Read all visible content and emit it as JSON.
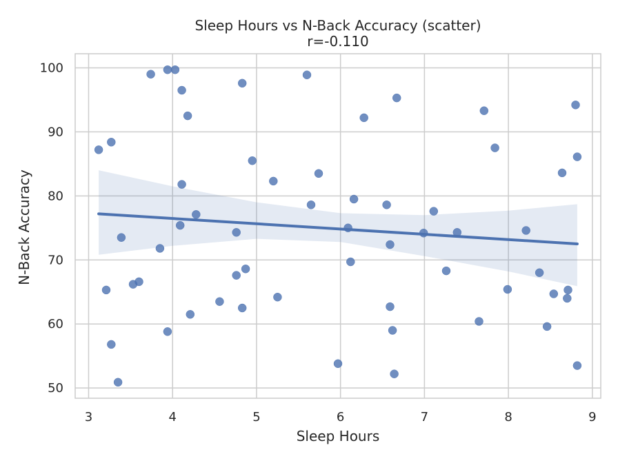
{
  "chart_data": {
    "type": "scatter",
    "title": "Sleep Hours vs N-Back Accuracy (scatter)",
    "subtitle": "r=-0.110",
    "xlabel": "Sleep Hours",
    "ylabel": "N-Back Accuracy",
    "xlim": [
      2.84,
      9.1
    ],
    "ylim": [
      48.4,
      102.2
    ],
    "xticks": [
      "3",
      "4",
      "5",
      "6",
      "7",
      "8",
      "9"
    ],
    "yticks": [
      "50",
      "60",
      "70",
      "80",
      "90",
      "100"
    ],
    "grid": true,
    "colors": {
      "point": "#4c72b0",
      "line": "#4c72b0",
      "band": "#4c72b0",
      "grid": "#cccccc",
      "frame": "#cccccc"
    },
    "points": [
      {
        "x": 3.12,
        "y": 87.2
      },
      {
        "x": 3.27,
        "y": 88.4
      },
      {
        "x": 3.21,
        "y": 65.3
      },
      {
        "x": 3.27,
        "y": 56.8
      },
      {
        "x": 3.35,
        "y": 50.9
      },
      {
        "x": 3.39,
        "y": 73.5
      },
      {
        "x": 3.53,
        "y": 66.2
      },
      {
        "x": 3.6,
        "y": 66.6
      },
      {
        "x": 3.74,
        "y": 99.0
      },
      {
        "x": 3.85,
        "y": 71.8
      },
      {
        "x": 3.94,
        "y": 99.7
      },
      {
        "x": 4.03,
        "y": 99.7
      },
      {
        "x": 3.94,
        "y": 58.8
      },
      {
        "x": 4.11,
        "y": 96.5
      },
      {
        "x": 4.18,
        "y": 92.5
      },
      {
        "x": 4.11,
        "y": 81.8
      },
      {
        "x": 4.09,
        "y": 75.4
      },
      {
        "x": 4.28,
        "y": 77.1
      },
      {
        "x": 4.21,
        "y": 61.5
      },
      {
        "x": 4.56,
        "y": 63.5
      },
      {
        "x": 4.83,
        "y": 97.6
      },
      {
        "x": 4.76,
        "y": 74.3
      },
      {
        "x": 4.76,
        "y": 67.6
      },
      {
        "x": 4.87,
        "y": 68.6
      },
      {
        "x": 4.83,
        "y": 62.5
      },
      {
        "x": 4.95,
        "y": 85.5
      },
      {
        "x": 5.2,
        "y": 82.3
      },
      {
        "x": 5.25,
        "y": 64.2
      },
      {
        "x": 5.6,
        "y": 98.9
      },
      {
        "x": 5.74,
        "y": 83.5
      },
      {
        "x": 5.65,
        "y": 78.6
      },
      {
        "x": 5.97,
        "y": 53.8
      },
      {
        "x": 6.09,
        "y": 75.0
      },
      {
        "x": 6.16,
        "y": 79.5
      },
      {
        "x": 6.12,
        "y": 69.7
      },
      {
        "x": 6.28,
        "y": 92.2
      },
      {
        "x": 6.55,
        "y": 78.6
      },
      {
        "x": 6.59,
        "y": 72.4
      },
      {
        "x": 6.59,
        "y": 62.7
      },
      {
        "x": 6.62,
        "y": 59.0
      },
      {
        "x": 6.64,
        "y": 52.2
      },
      {
        "x": 6.67,
        "y": 95.3
      },
      {
        "x": 6.99,
        "y": 74.2
      },
      {
        "x": 7.11,
        "y": 77.6
      },
      {
        "x": 7.26,
        "y": 68.3
      },
      {
        "x": 7.39,
        "y": 74.3
      },
      {
        "x": 7.65,
        "y": 60.4
      },
      {
        "x": 7.71,
        "y": 93.3
      },
      {
        "x": 7.84,
        "y": 87.5
      },
      {
        "x": 7.99,
        "y": 65.4
      },
      {
        "x": 8.21,
        "y": 74.6
      },
      {
        "x": 8.37,
        "y": 68.0
      },
      {
        "x": 8.46,
        "y": 59.6
      },
      {
        "x": 8.54,
        "y": 64.7
      },
      {
        "x": 8.64,
        "y": 83.6
      },
      {
        "x": 8.7,
        "y": 64.0
      },
      {
        "x": 8.71,
        "y": 65.3
      },
      {
        "x": 8.8,
        "y": 94.2
      },
      {
        "x": 8.82,
        "y": 86.1
      },
      {
        "x": 8.82,
        "y": 53.5
      }
    ],
    "regression_line": {
      "x": [
        3.12,
        8.82
      ],
      "y": [
        77.2,
        72.5
      ]
    },
    "confidence_band": {
      "x": [
        3.12,
        4.0,
        5.0,
        6.0,
        7.0,
        8.0,
        8.82
      ],
      "upper": [
        84.0,
        81.5,
        79.0,
        77.3,
        77.0,
        77.7,
        78.7
      ],
      "lower": [
        70.8,
        72.2,
        73.3,
        72.8,
        70.6,
        68.2,
        65.9
      ]
    }
  }
}
